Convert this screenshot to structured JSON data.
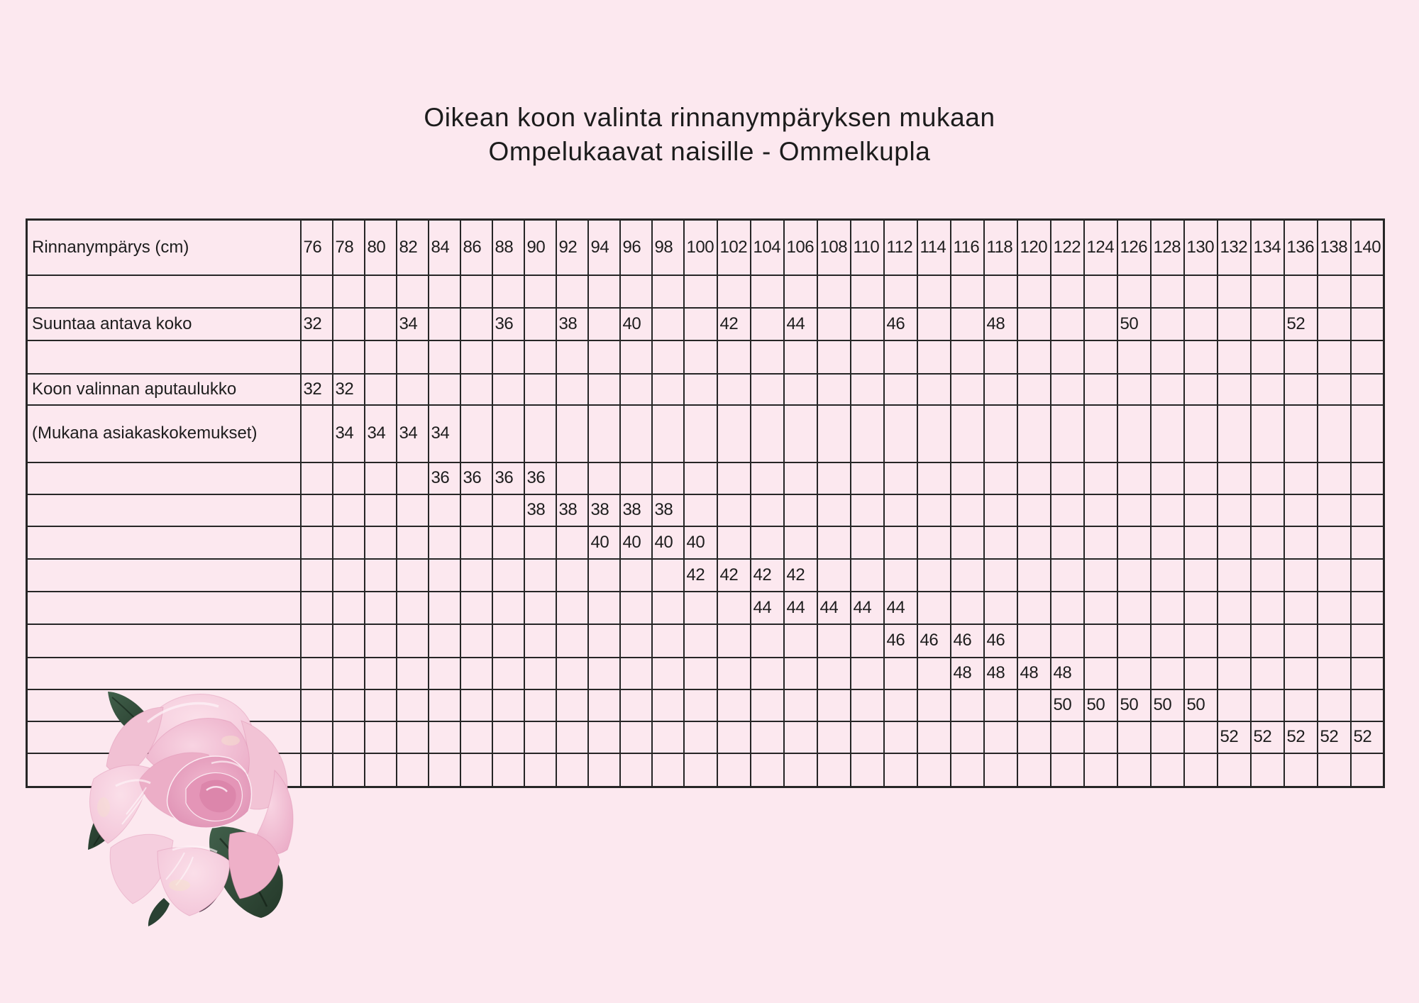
{
  "page": {
    "background_color": "#fce8ef",
    "border_color": "#262626",
    "text_color": "#1d1d1d"
  },
  "title": {
    "line1": "Oikean koon valinta rinnanympäryksen mukaan",
    "line2": "Ompelukaavat naisille - Ommelkupla"
  },
  "size_chart": {
    "columns": [
      "76",
      "78",
      "80",
      "82",
      "84",
      "86",
      "88",
      "90",
      "92",
      "94",
      "96",
      "98",
      "100",
      "102",
      "104",
      "106",
      "108",
      "110",
      "112",
      "114",
      "116",
      "118",
      "120",
      "122",
      "124",
      "126",
      "128",
      "130",
      "132",
      "134",
      "136",
      "138",
      "140"
    ],
    "rows": [
      {
        "name": "bust-header-row",
        "label": "Rinnanympärys (cm)",
        "header": true,
        "cells": {}
      },
      {
        "name": "spacer-row-1",
        "label": "",
        "cells": {}
      },
      {
        "name": "suggested-size-row",
        "label": "Suuntaa antava koko",
        "cells": {
          "76": "32",
          "82": "34",
          "88": "36",
          "92": "38",
          "96": "40",
          "102": "42",
          "106": "44",
          "112": "46",
          "118": "48",
          "126": "50",
          "136": "52"
        }
      },
      {
        "name": "spacer-row-2",
        "label": "",
        "cells": {}
      },
      {
        "name": "helper-table-row",
        "label": "Koon valinnan aputaulukko",
        "cells": {
          "76": "32",
          "78": "32"
        }
      },
      {
        "name": "customer-experience-row",
        "label": "(Mukana asiakaskokemukset)",
        "cells": {
          "78": "34",
          "80": "34",
          "82": "34",
          "84": "34"
        }
      },
      {
        "name": "size-36-row",
        "label": "",
        "cells": {
          "84": "36",
          "86": "36",
          "88": "36",
          "90": "36"
        }
      },
      {
        "name": "size-38-row",
        "label": "",
        "cells": {
          "90": "38",
          "92": "38",
          "94": "38",
          "96": "38",
          "98": "38"
        }
      },
      {
        "name": "size-40-row",
        "label": "",
        "cells": {
          "94": "40",
          "96": "40",
          "98": "40",
          "100": "40"
        }
      },
      {
        "name": "size-42-row",
        "label": "",
        "cells": {
          "100": "42",
          "102": "42",
          "104": "42",
          "106": "42"
        }
      },
      {
        "name": "size-44-row",
        "label": "",
        "cells": {
          "104": "44",
          "106": "44",
          "108": "44",
          "110": "44",
          "112": "44"
        }
      },
      {
        "name": "size-46-row",
        "label": "",
        "cells": {
          "112": "46",
          "114": "46",
          "116": "46",
          "118": "46"
        }
      },
      {
        "name": "size-48-row",
        "label": "",
        "cells": {
          "116": "48",
          "118": "48",
          "120": "48",
          "122": "48"
        }
      },
      {
        "name": "size-50-row",
        "label": "",
        "cells": {
          "122": "50",
          "124": "50",
          "126": "50",
          "128": "50",
          "130": "50"
        }
      },
      {
        "name": "size-52-row",
        "label": "",
        "cells": {
          "132": "52",
          "134": "52",
          "136": "52",
          "138": "52",
          "140": "52"
        }
      },
      {
        "name": "spacer-row-3",
        "label": "",
        "cells": {}
      }
    ]
  },
  "decoration": {
    "rose_illustration": "pink rose with dark green leaves",
    "petal_color": "#f2c3d7",
    "leaf_color": "#2c4636"
  }
}
